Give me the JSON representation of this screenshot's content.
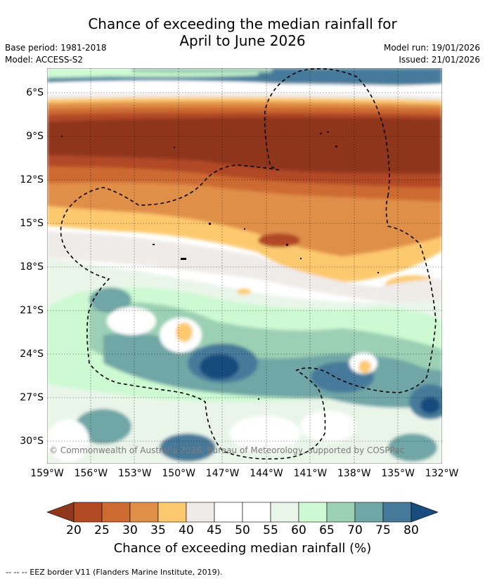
{
  "title_line1": "Chance of exceeding the median rainfall for",
  "title_line2": "April to June 2026",
  "base_period": "Base period: 1981-2018",
  "model": "Model: ACCESS-S2",
  "model_run": "Model run: 19/01/2026",
  "issued": "Issued: 21/01/2026",
  "lat_labels": [
    "6°S",
    "9°S",
    "12°S",
    "15°S",
    "18°S",
    "21°S",
    "24°S",
    "27°S",
    "30°S"
  ],
  "lon_labels": [
    "159°W",
    "156°W",
    "153°W",
    "150°W",
    "147°W",
    "144°W",
    "141°W",
    "138°W",
    "135°W",
    "132°W"
  ],
  "copyright": "© Commonwealth of Australia 2026, Bureau of Meteorology, supported by COSPPac",
  "colorbar": {
    "labels": [
      "20",
      "25",
      "30",
      "35",
      "40",
      "45",
      "50",
      "55",
      "60",
      "65",
      "70",
      "75",
      "80"
    ],
    "colors": [
      "#8f361b",
      "#b24a25",
      "#cd6a31",
      "#e08f49",
      "#fdc96e",
      "#efebe8",
      "#ffffff",
      "#ffffff",
      "#eaf5ea",
      "#cdfad2",
      "#9bd0b4",
      "#6fa6a6",
      "#467a9a",
      "#194c7e"
    ],
    "title": "Chance of exceeding median rainfall (%)"
  },
  "footnote": "--  --  -- EEZ border V11 (Flanders Marine Institute, 2019)."
}
